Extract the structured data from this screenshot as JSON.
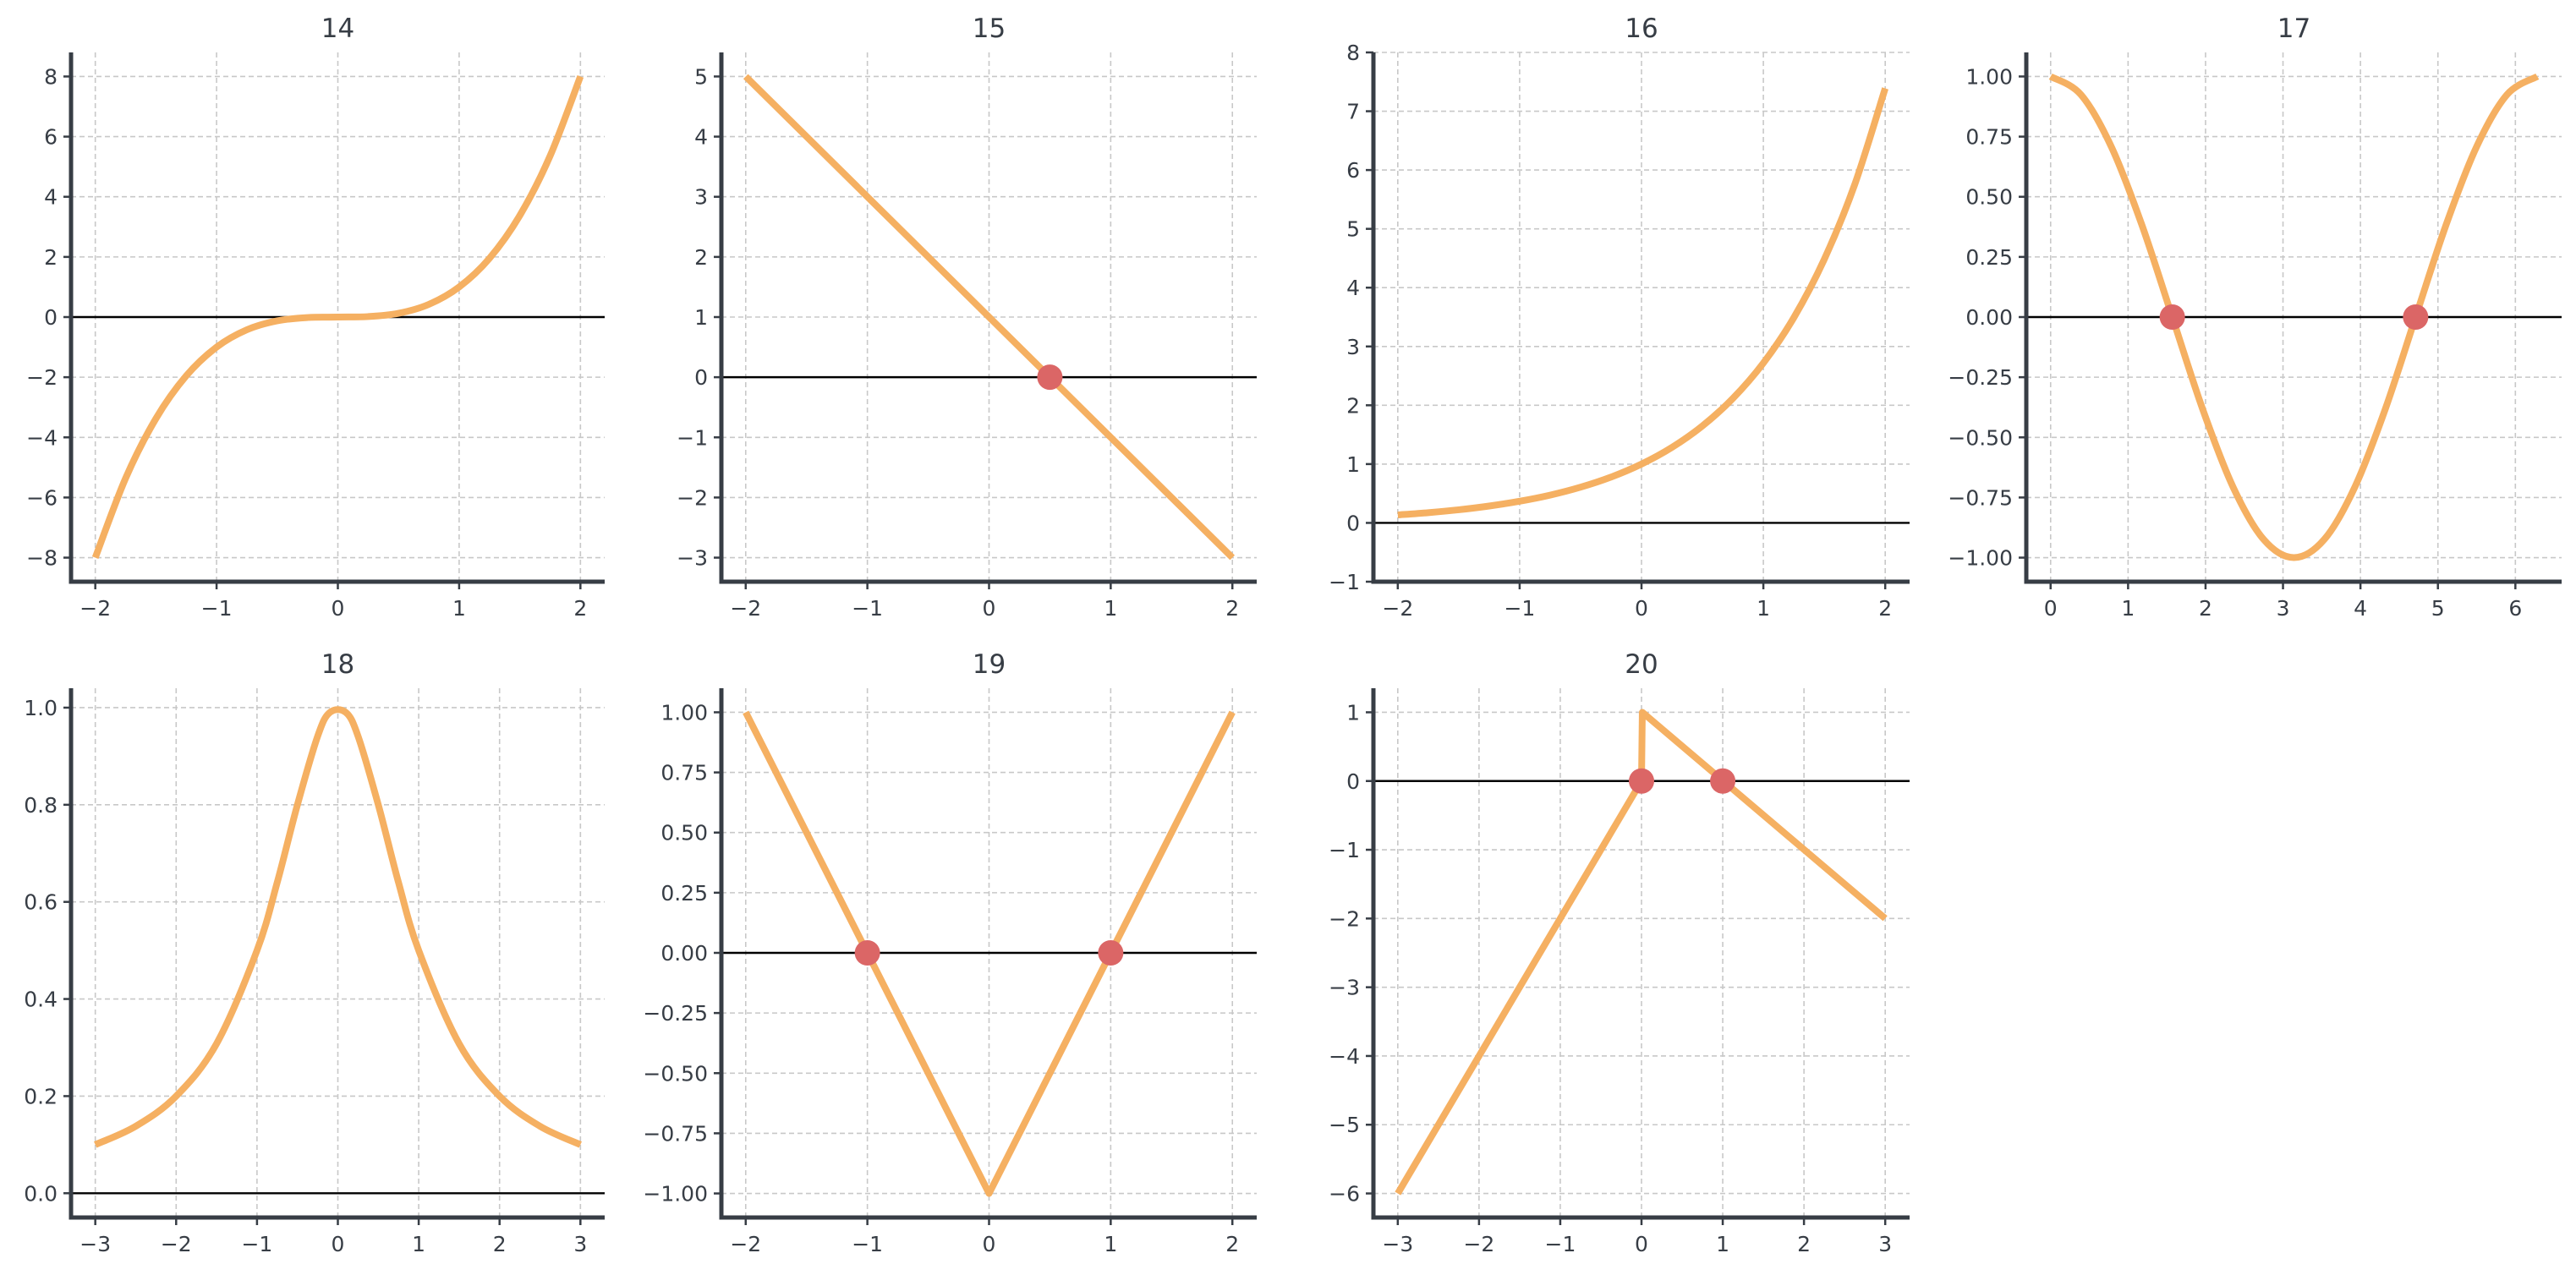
{
  "colors": {
    "line": "#f5b062",
    "root": "#db6666",
    "axis": "#373d45",
    "zero_line": "#000000",
    "grid": "#c8c8c8"
  },
  "chart_data": [
    {
      "type": "line",
      "title": "14",
      "xlim": [
        -2.2,
        2.2
      ],
      "ylim": [
        -8.8,
        8.8
      ],
      "xticks": [
        -2,
        -1,
        0,
        1,
        2
      ],
      "yticks": [
        -8,
        -6,
        -4,
        -2,
        0,
        2,
        4,
        6,
        8
      ],
      "grid": true,
      "smooth": true,
      "x": [
        -2,
        -1.75,
        -1.5,
        -1.25,
        -1,
        -0.75,
        -0.5,
        -0.25,
        0,
        0.25,
        0.5,
        0.75,
        1,
        1.25,
        1.5,
        1.75,
        2
      ],
      "y": [
        -8,
        -5.359,
        -3.375,
        -1.953,
        -1,
        -0.422,
        -0.125,
        -0.016,
        0,
        0.016,
        0.125,
        0.422,
        1,
        1.953,
        3.375,
        5.359,
        8
      ],
      "roots": []
    },
    {
      "type": "line",
      "title": "15",
      "xlim": [
        -2.2,
        2.2
      ],
      "ylim": [
        -3.4,
        5.4
      ],
      "xticks": [
        -2,
        -1,
        0,
        1,
        2
      ],
      "yticks": [
        -3,
        -2,
        -1,
        0,
        1,
        2,
        3,
        4,
        5
      ],
      "grid": true,
      "smooth": false,
      "x": [
        -2,
        2
      ],
      "y": [
        5,
        -3
      ],
      "roots": [
        0.5
      ]
    },
    {
      "type": "line",
      "title": "16",
      "xlim": [
        -2.2,
        2.2
      ],
      "ylim": [
        -1,
        8
      ],
      "xticks": [
        -2,
        -1,
        0,
        1,
        2
      ],
      "yticks": [
        -1,
        0,
        1,
        2,
        3,
        4,
        5,
        6,
        7,
        8
      ],
      "grid": true,
      "smooth": true,
      "x": [
        -2,
        -1.75,
        -1.5,
        -1.25,
        -1,
        -0.75,
        -0.5,
        -0.25,
        0,
        0.25,
        0.5,
        0.75,
        1,
        1.25,
        1.5,
        1.75,
        2
      ],
      "y": [
        0.135,
        0.174,
        0.223,
        0.287,
        0.368,
        0.472,
        0.607,
        0.779,
        1,
        1.284,
        1.649,
        2.117,
        2.718,
        3.49,
        4.482,
        5.755,
        7.389
      ],
      "roots": []
    },
    {
      "type": "line",
      "title": "17",
      "xlim": [
        -0.314,
        6.597
      ],
      "ylim": [
        -1.1,
        1.1
      ],
      "xticks": [
        0,
        1,
        2,
        3,
        4,
        5,
        6
      ],
      "yticks": [
        -1.0,
        -0.75,
        -0.5,
        -0.25,
        0.0,
        0.25,
        0.5,
        0.75,
        1.0
      ],
      "ytick_labels": [
        "−1.00",
        "−0.75",
        "−0.50",
        "−0.25",
        "0.00",
        "0.25",
        "0.50",
        "0.75",
        "1.00"
      ],
      "grid": true,
      "smooth": true,
      "x": [
        0,
        0.393,
        0.785,
        1.178,
        1.571,
        1.963,
        2.356,
        2.749,
        3.142,
        3.534,
        3.927,
        4.32,
        4.712,
        5.105,
        5.498,
        5.89,
        6.283
      ],
      "y": [
        1,
        0.924,
        0.707,
        0.383,
        0,
        -0.383,
        -0.707,
        -0.924,
        -1,
        -0.924,
        -0.707,
        -0.383,
        0,
        0.383,
        0.707,
        0.924,
        1
      ],
      "roots": [
        1.571,
        4.712
      ]
    },
    {
      "type": "line",
      "title": "18",
      "xlim": [
        -3.3,
        3.3
      ],
      "ylim": [
        -0.05,
        1.04
      ],
      "xticks": [
        -3,
        -2,
        -1,
        0,
        1,
        2,
        3
      ],
      "yticks": [
        0.0,
        0.2,
        0.4,
        0.6,
        0.8,
        1.0
      ],
      "ytick_labels": [
        "0.0",
        "0.2",
        "0.4",
        "0.6",
        "0.8",
        "1.0"
      ],
      "grid": true,
      "smooth": true,
      "x": [
        -3,
        -2.5,
        -2,
        -1.5,
        -1,
        -0.75,
        -0.5,
        -0.25,
        -0.1,
        0.1,
        0.25,
        0.5,
        0.75,
        1,
        1.5,
        2,
        2.5,
        3
      ],
      "y": [
        0.1,
        0.138,
        0.2,
        0.308,
        0.5,
        0.64,
        0.8,
        0.941,
        0.99,
        0.99,
        0.941,
        0.8,
        0.64,
        0.5,
        0.308,
        0.2,
        0.138,
        0.1
      ],
      "roots": []
    },
    {
      "type": "line",
      "title": "19",
      "xlim": [
        -2.2,
        2.2
      ],
      "ylim": [
        -1.1,
        1.1
      ],
      "xticks": [
        -2,
        -1,
        0,
        1,
        2
      ],
      "yticks": [
        -1.0,
        -0.75,
        -0.5,
        -0.25,
        0.0,
        0.25,
        0.5,
        0.75,
        1.0
      ],
      "ytick_labels": [
        "−1.00",
        "−0.75",
        "−0.50",
        "−0.25",
        "0.00",
        "0.25",
        "0.50",
        "0.75",
        "1.00"
      ],
      "grid": true,
      "smooth": false,
      "x": [
        -2,
        0,
        2
      ],
      "y": [
        1,
        -1,
        1
      ],
      "roots": [
        -1,
        1
      ]
    },
    {
      "type": "line",
      "title": "20",
      "xlim": [
        -3.3,
        3.3
      ],
      "ylim": [
        -6.35,
        1.35
      ],
      "xticks": [
        -3,
        -2,
        -1,
        0,
        1,
        2,
        3
      ],
      "yticks": [
        -6,
        -5,
        -4,
        -3,
        -2,
        -1,
        0,
        1
      ],
      "grid": true,
      "smooth": false,
      "x": [
        -3,
        0,
        0.01,
        3
      ],
      "y": [
        -6,
        0,
        1,
        -2
      ],
      "roots": [
        0,
        1
      ]
    }
  ]
}
